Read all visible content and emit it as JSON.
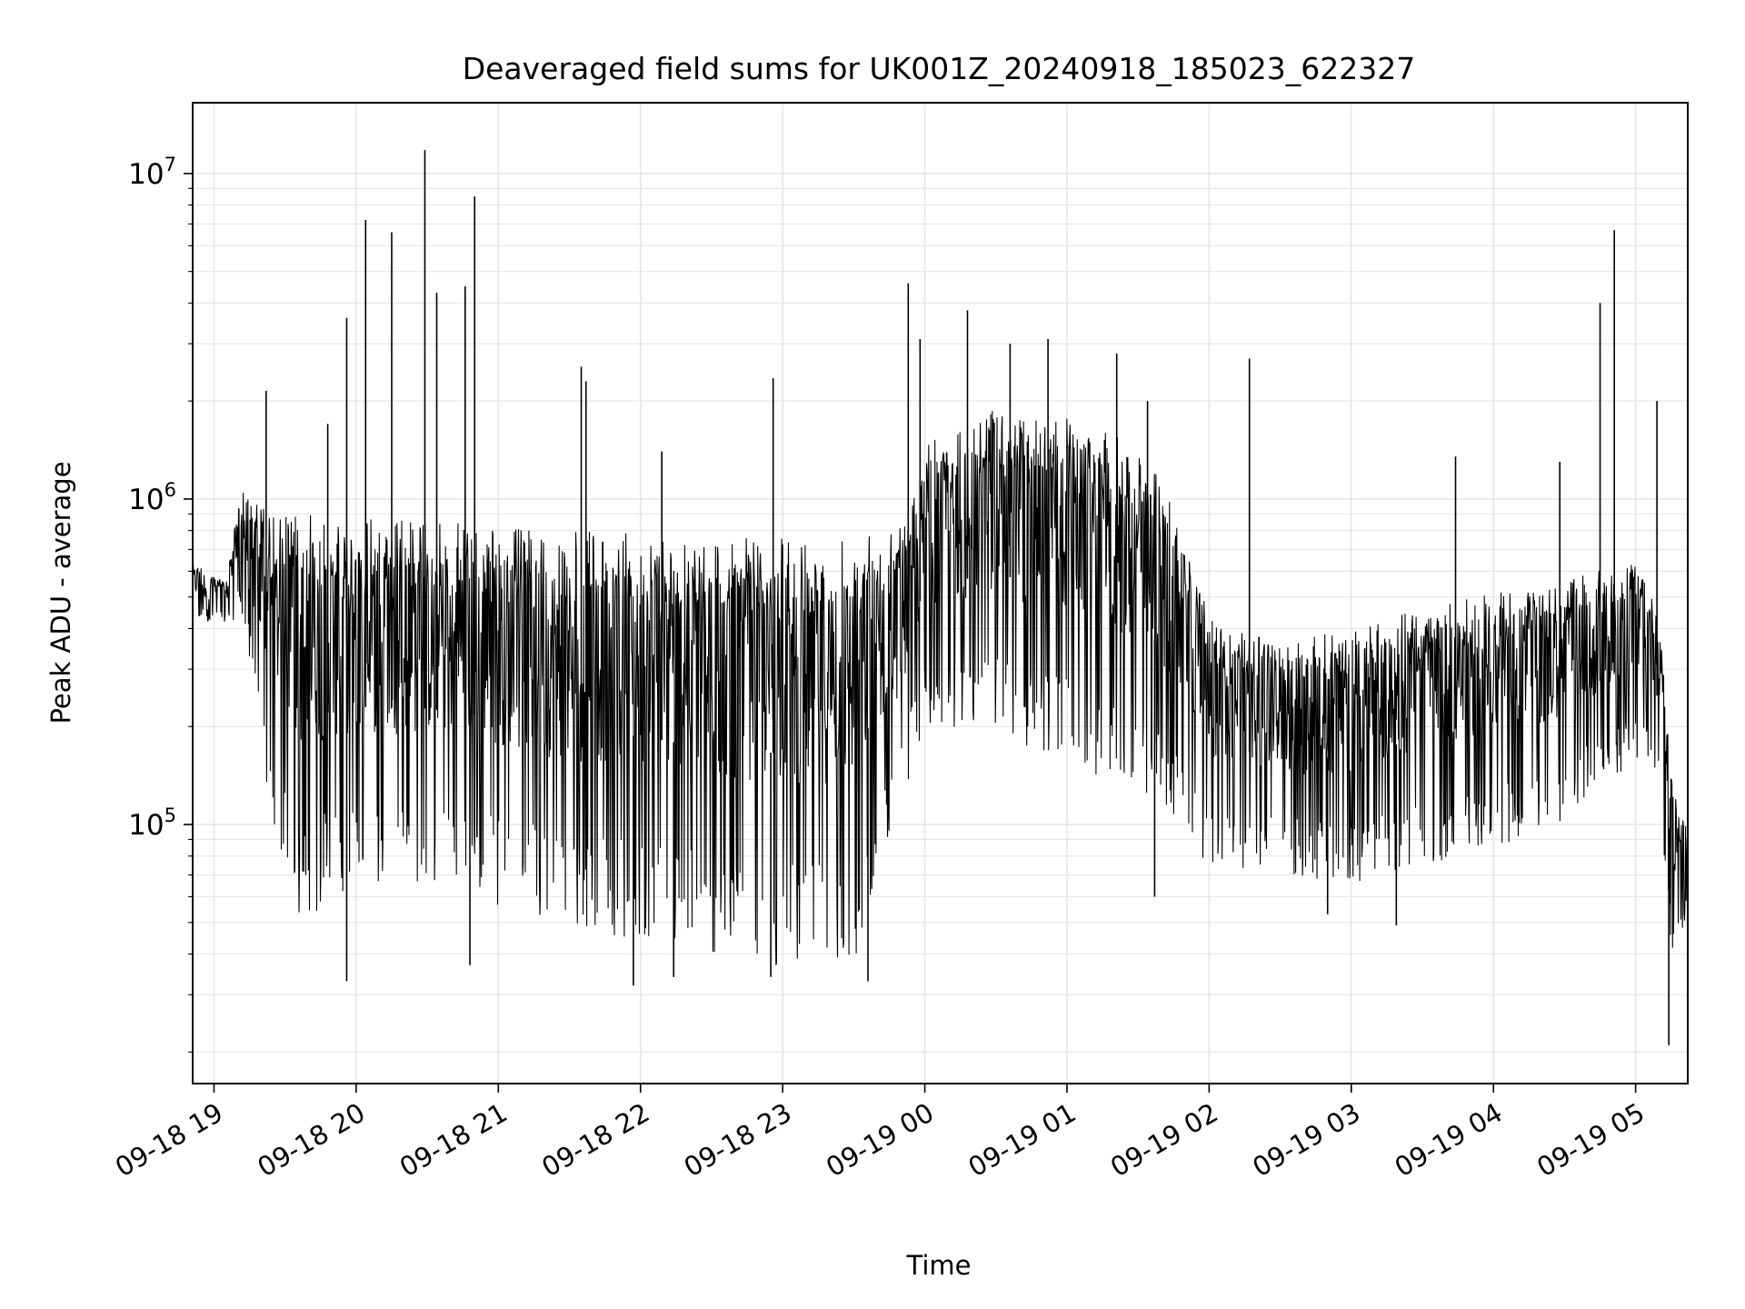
{
  "chart_data": {
    "type": "line",
    "title": "Deaveraged field sums for UK001Z_20240918_185023_622327",
    "xlabel": "Time",
    "ylabel": "Peak ADU - average",
    "yscale": "log",
    "grid": true,
    "line_color": "#000000",
    "grid_color": "#e6e6e6",
    "xlim": [
      "2024-09-18 18:51",
      "2024-09-19 05:22"
    ],
    "ylim": [
      16000,
      16500000
    ],
    "x_ticks": [
      "2024-09-18 19:00",
      "2024-09-18 20:00",
      "2024-09-18 21:00",
      "2024-09-18 22:00",
      "2024-09-18 23:00",
      "2024-09-19 00:00",
      "2024-09-19 01:00",
      "2024-09-19 02:00",
      "2024-09-19 03:00",
      "2024-09-19 04:00",
      "2024-09-19 05:00"
    ],
    "x_tick_labels": [
      "09-18 19",
      "09-18 20",
      "09-18 21",
      "09-18 22",
      "09-18 23",
      "09-19 00",
      "09-19 01",
      "09-19 02",
      "09-19 03",
      "09-19 04",
      "09-19 05"
    ],
    "y_major_ticks": [
      100000,
      1000000,
      10000000
    ],
    "y_tick_labels": [
      {
        "base": "10",
        "exp": "5"
      },
      {
        "base": "10",
        "exp": "6"
      },
      {
        "base": "10",
        "exp": "7"
      }
    ],
    "series": [
      {
        "envelope": [
          {
            "x": "2024-09-18 18:51",
            "hi": 650000,
            "lo": 420000
          },
          {
            "x": "2024-09-18 19:05",
            "hi": 560000,
            "lo": 420000
          },
          {
            "x": "2024-09-18 19:12",
            "hi": 1150000,
            "lo": 430000
          },
          {
            "x": "2024-09-18 19:20",
            "hi": 950000,
            "lo": 150000
          },
          {
            "x": "2024-09-18 19:35",
            "hi": 900000,
            "lo": 50000
          },
          {
            "x": "2024-09-18 20:00",
            "hi": 880000,
            "lo": 60000
          },
          {
            "x": "2024-09-18 20:30",
            "hi": 860000,
            "lo": 60000
          },
          {
            "x": "2024-09-18 21:00",
            "hi": 820000,
            "lo": 55000
          },
          {
            "x": "2024-09-18 21:30",
            "hi": 800000,
            "lo": 45000
          },
          {
            "x": "2024-09-18 22:00",
            "hi": 780000,
            "lo": 45000
          },
          {
            "x": "2024-09-18 22:30",
            "hi": 760000,
            "lo": 38000
          },
          {
            "x": "2024-09-18 23:00",
            "hi": 760000,
            "lo": 36000
          },
          {
            "x": "2024-09-18 23:30",
            "hi": 780000,
            "lo": 35000
          },
          {
            "x": "2024-09-18 23:50",
            "hi": 900000,
            "lo": 100000
          },
          {
            "x": "2024-09-19 00:00",
            "hi": 1500000,
            "lo": 200000
          },
          {
            "x": "2024-09-19 00:30",
            "hi": 1900000,
            "lo": 180000
          },
          {
            "x": "2024-09-19 01:00",
            "hi": 1800000,
            "lo": 160000
          },
          {
            "x": "2024-09-19 01:30",
            "hi": 1500000,
            "lo": 120000
          },
          {
            "x": "2024-09-19 01:45",
            "hi": 1000000,
            "lo": 100000
          },
          {
            "x": "2024-09-19 02:00",
            "hi": 430000,
            "lo": 75000
          },
          {
            "x": "2024-09-19 02:30",
            "hi": 360000,
            "lo": 70000
          },
          {
            "x": "2024-09-19 03:00",
            "hi": 400000,
            "lo": 65000
          },
          {
            "x": "2024-09-19 03:30",
            "hi": 460000,
            "lo": 75000
          },
          {
            "x": "2024-09-19 04:00",
            "hi": 520000,
            "lo": 85000
          },
          {
            "x": "2024-09-19 04:30",
            "hi": 560000,
            "lo": 100000
          },
          {
            "x": "2024-09-19 05:00",
            "hi": 650000,
            "lo": 160000
          },
          {
            "x": "2024-09-19 05:10",
            "hi": 450000,
            "lo": 130000
          },
          {
            "x": "2024-09-19 05:15",
            "hi": 150000,
            "lo": 40000
          },
          {
            "x": "2024-09-19 05:22",
            "hi": 100000,
            "lo": 50000
          }
        ],
        "spikes": [
          {
            "x": "2024-09-18 19:22",
            "y": 2150000
          },
          {
            "x": "2024-09-18 19:48",
            "y": 1700000
          },
          {
            "x": "2024-09-18 19:56",
            "y": 3600000
          },
          {
            "x": "2024-09-18 20:04",
            "y": 7200000
          },
          {
            "x": "2024-09-18 20:15",
            "y": 6600000
          },
          {
            "x": "2024-09-18 20:29",
            "y": 11800000
          },
          {
            "x": "2024-09-18 20:34",
            "y": 4300000
          },
          {
            "x": "2024-09-18 20:46",
            "y": 4500000
          },
          {
            "x": "2024-09-18 20:50",
            "y": 8500000
          },
          {
            "x": "2024-09-18 21:35",
            "y": 2550000
          },
          {
            "x": "2024-09-18 21:37",
            "y": 2300000
          },
          {
            "x": "2024-09-18 22:09",
            "y": 1400000
          },
          {
            "x": "2024-09-18 22:56",
            "y": 2350000
          },
          {
            "x": "2024-09-18 23:53",
            "y": 4600000
          },
          {
            "x": "2024-09-18 23:58",
            "y": 3100000
          },
          {
            "x": "2024-09-19 00:18",
            "y": 3800000
          },
          {
            "x": "2024-09-19 00:36",
            "y": 3000000
          },
          {
            "x": "2024-09-19 00:52",
            "y": 3100000
          },
          {
            "x": "2024-09-19 01:21",
            "y": 2800000
          },
          {
            "x": "2024-09-19 01:34",
            "y": 2000000
          },
          {
            "x": "2024-09-19 02:17",
            "y": 2700000
          },
          {
            "x": "2024-09-19 03:44",
            "y": 1350000
          },
          {
            "x": "2024-09-19 04:28",
            "y": 1300000
          },
          {
            "x": "2024-09-19 04:45",
            "y": 4000000
          },
          {
            "x": "2024-09-19 04:51",
            "y": 6700000
          },
          {
            "x": "2024-09-19 05:09",
            "y": 2000000
          }
        ],
        "dips": [
          {
            "x": "2024-09-18 19:56",
            "y": 33000
          },
          {
            "x": "2024-09-18 20:48",
            "y": 37000
          },
          {
            "x": "2024-09-18 21:57",
            "y": 32000
          },
          {
            "x": "2024-09-18 22:14",
            "y": 34000
          },
          {
            "x": "2024-09-18 22:55",
            "y": 34000
          },
          {
            "x": "2024-09-18 23:36",
            "y": 33000
          },
          {
            "x": "2024-09-19 01:37",
            "y": 60000
          },
          {
            "x": "2024-09-19 02:50",
            "y": 53000
          },
          {
            "x": "2024-09-19 03:19",
            "y": 49000
          },
          {
            "x": "2024-09-19 05:14",
            "y": 21000
          }
        ]
      }
    ]
  }
}
